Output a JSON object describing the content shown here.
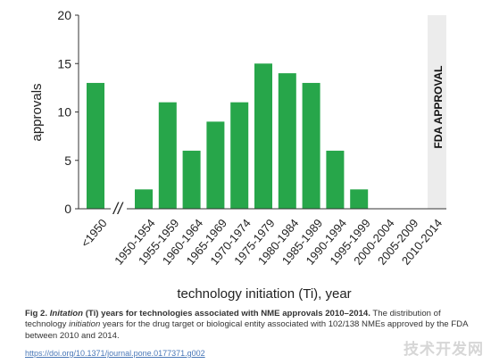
{
  "chart_data": {
    "type": "bar",
    "categories": [
      "<1950",
      "1950-1954",
      "1955-1959",
      "1960-1964",
      "1965-1969",
      "1970-1974",
      "1975-1979",
      "1980-1984",
      "1985-1989",
      "1990-1994",
      "1995-1999",
      "2000-2004",
      "2005-2009",
      "2010-2014"
    ],
    "values": [
      13,
      2,
      11,
      6,
      9,
      11,
      15,
      14,
      13,
      6,
      2,
      0,
      0,
      0
    ],
    "xlabel": "technology initiation (Ti), year",
    "ylabel": "approvals",
    "ylim": [
      0,
      20
    ],
    "yticks": [
      "0",
      "5",
      "10",
      "15",
      "20"
    ],
    "axis_break_symbol": "//",
    "bar_color": "#27a64a",
    "region_label": "FDA APPROVAL",
    "region_color": "#ececec",
    "grid": false,
    "legend": "none"
  },
  "caption": {
    "lead_prefix": "Fig 2. ",
    "lead_italic": "Initation",
    "lead_rest": " (Ti) years for technologies associated with NME approvals 2010–2014.",
    "body_1": " The distribution of technology ",
    "body_italic": "initiation",
    "body_2": " years for the drug target or biological entity associated with 102/138 NMEs approved by the FDA between 2010 and 2014."
  },
  "doi": "https://doi.org/10.1371/journal.pone.0177371.g002",
  "watermark": "技术开发网"
}
